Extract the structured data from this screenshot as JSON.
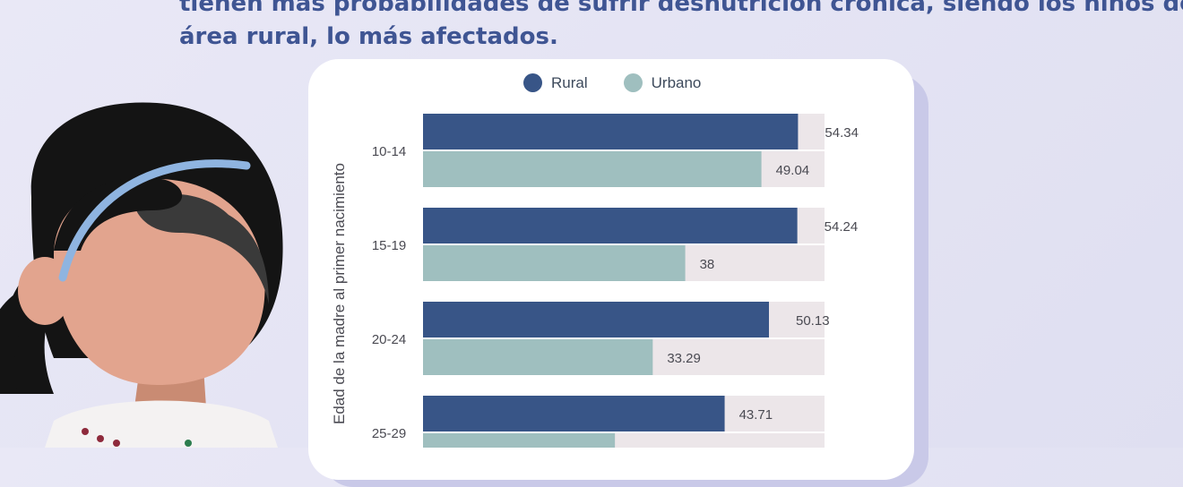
{
  "headline": {
    "line1": "tienen más probabilidades de sufrir desnutrición crónica, siendo los niños del",
    "line2": "área rural, lo más afectados."
  },
  "colors": {
    "rural": "#385587",
    "urbano": "#9fbfbf",
    "track": "#ece6e9",
    "label_text": "#4a4a52",
    "headline": "#3f5593"
  },
  "chart_data": {
    "type": "bar",
    "orientation": "horizontal",
    "ylabel": "Edad de la madre al primer nacimiento",
    "categories": [
      "10-14",
      "15-19",
      "20-24",
      "25-29"
    ],
    "series": [
      {
        "name": "Rural",
        "values": [
          54.34,
          54.24,
          50.13,
          43.71
        ]
      },
      {
        "name": "Urbano",
        "values": [
          49.04,
          38,
          33.29,
          27.81
        ]
      }
    ],
    "xlim": [
      0,
      60
    ],
    "legend": "top",
    "grid": false
  },
  "icons": {
    "illustration": "girl-illustration-icon"
  }
}
